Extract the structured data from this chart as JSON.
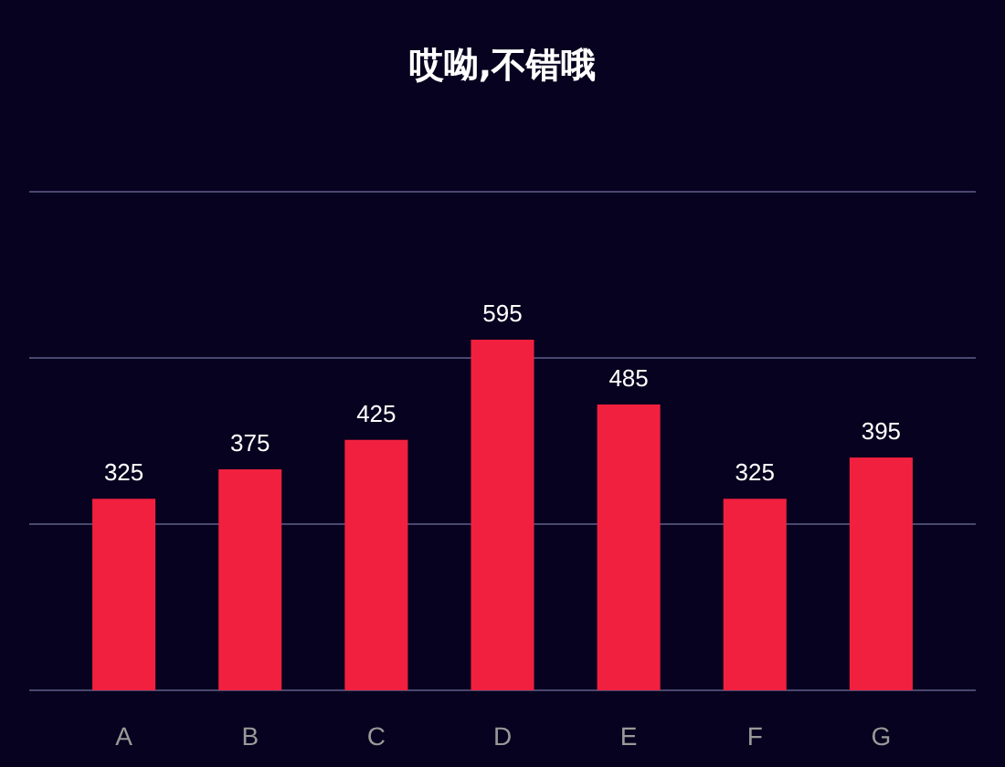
{
  "chart_data": {
    "type": "bar",
    "title": "哎呦,不错哦",
    "categories": [
      "A",
      "B",
      "C",
      "D",
      "E",
      "F",
      "G"
    ],
    "values": [
      325,
      375,
      425,
      595,
      485,
      325,
      395
    ],
    "color": "#f2203f",
    "ylim": [
      0,
      846
    ],
    "yticks": [
      {
        "value": 0,
        "label": null
      },
      {
        "value": 282,
        "label": null
      },
      {
        "value": 564,
        "label": null
      },
      {
        "value": 846,
        "label": null
      }
    ],
    "grid": "y",
    "tick_labels": "x",
    "data_labels": true
  }
}
